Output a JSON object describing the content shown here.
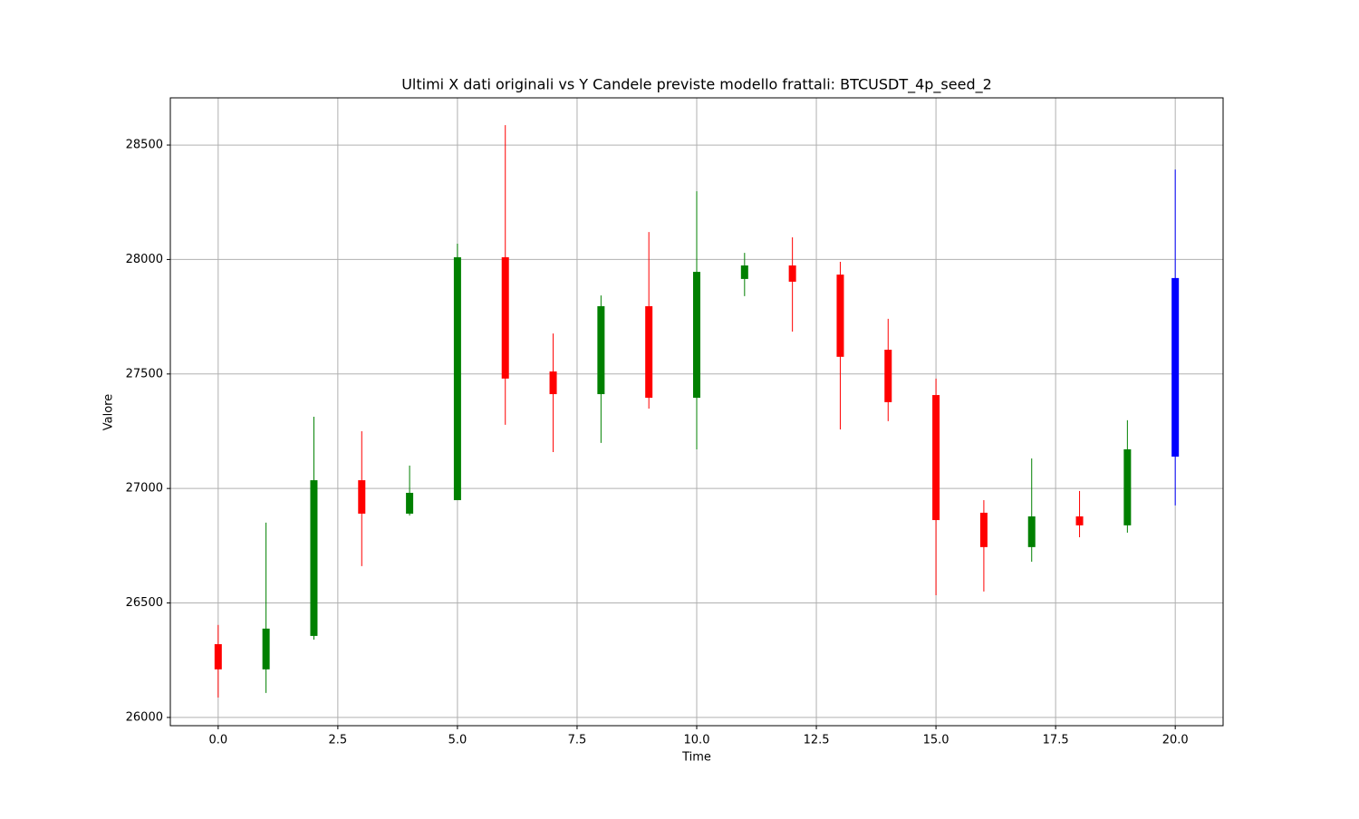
{
  "chart_data": {
    "type": "candlestick",
    "title": "Ultimi X dati originali vs Y Candele previste modello frattali: BTCUSDT_4p_seed_2",
    "xlabel": "Time",
    "ylabel": "Valore",
    "x": [
      0,
      1,
      2,
      3,
      4,
      5,
      6,
      7,
      8,
      9,
      10,
      11,
      12,
      13,
      14,
      15,
      16,
      17,
      18,
      19,
      20
    ],
    "open": [
      26320,
      26210,
      26356,
      27036,
      26890,
      26949,
      28010,
      27511,
      27412,
      27796,
      27396,
      27915,
      27974,
      27934,
      27606,
      27408,
      26894,
      26744,
      26878,
      26839,
      27139
    ],
    "high": [
      26404,
      26851,
      27313,
      27250,
      27100,
      28069,
      28587,
      27677,
      27843,
      28120,
      28298,
      28029,
      28097,
      27990,
      27741,
      27480,
      26949,
      27131,
      26989,
      27298,
      28393
    ],
    "low": [
      26087,
      26107,
      26340,
      26661,
      26882,
      26949,
      27278,
      27159,
      27199,
      27349,
      27171,
      27840,
      27685,
      27258,
      27294,
      26534,
      26550,
      26680,
      26787,
      26807,
      26926
    ],
    "close": [
      26210,
      26388,
      27036,
      26890,
      26981,
      28010,
      27480,
      27412,
      27796,
      27396,
      27946,
      27974,
      27903,
      27575,
      27377,
      26862,
      26744,
      26878,
      26839,
      27171,
      27919
    ],
    "colors": [
      "red",
      "green",
      "green",
      "red",
      "green",
      "green",
      "red",
      "red",
      "green",
      "red",
      "green",
      "green",
      "red",
      "red",
      "red",
      "red",
      "red",
      "green",
      "red",
      "green",
      "blue"
    ],
    "xlim": [
      -1,
      21
    ],
    "ylim": [
      25964,
      28706
    ],
    "xticks": [
      {
        "value": 0,
        "label": "0.0"
      },
      2.5,
      {
        "value": 5,
        "label": "5.0"
      },
      7.5,
      {
        "value": 10,
        "label": "10.0"
      },
      12.5,
      {
        "value": 15,
        "label": "15.0"
      },
      17.5,
      {
        "value": 20,
        "label": "20.0"
      }
    ],
    "yticks": [
      26000,
      26500,
      27000,
      27500,
      28000,
      28500
    ],
    "grid": true
  }
}
